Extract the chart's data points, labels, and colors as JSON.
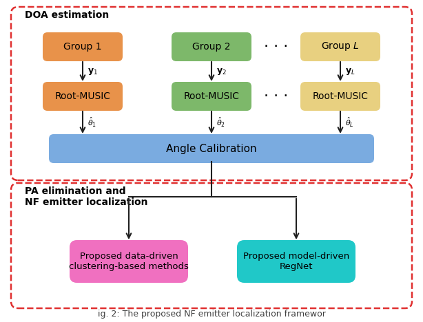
{
  "bg_color": "#ffffff",
  "top_box_border_color": "#e03030",
  "bottom_box_border_color": "#e03030",
  "top_label": "DOA estimation",
  "bottom_label": "PA elimination and\nNF emitter localization",
  "group1_color": "#e8924a",
  "group2_color": "#7db86a",
  "group3_color": "#e8d080",
  "angle_calib_color": "#7aabe0",
  "cluster_color": "#f070c0",
  "regnet_color": "#20c8c8",
  "arrow_color": "#202020",
  "groups": [
    "Group 1",
    "Group 2",
    "Group $L$"
  ],
  "y_labels": [
    "$\\mathbf{y}_1$",
    "$\\mathbf{y}_2$",
    "$\\mathbf{y}_L$"
  ],
  "theta_labels": [
    "$\\hat{\\theta}_1$",
    "$\\hat{\\theta}_2$",
    "$\\hat{\\theta}_L$"
  ],
  "rm_label": "Root-MUSIC",
  "angle_calib_label": "Angle Calibration",
  "cluster_label": "Proposed data-driven\nclustering-based methods",
  "regnet_label": "Proposed model-driven\nRegNet",
  "dots": "· · ·"
}
